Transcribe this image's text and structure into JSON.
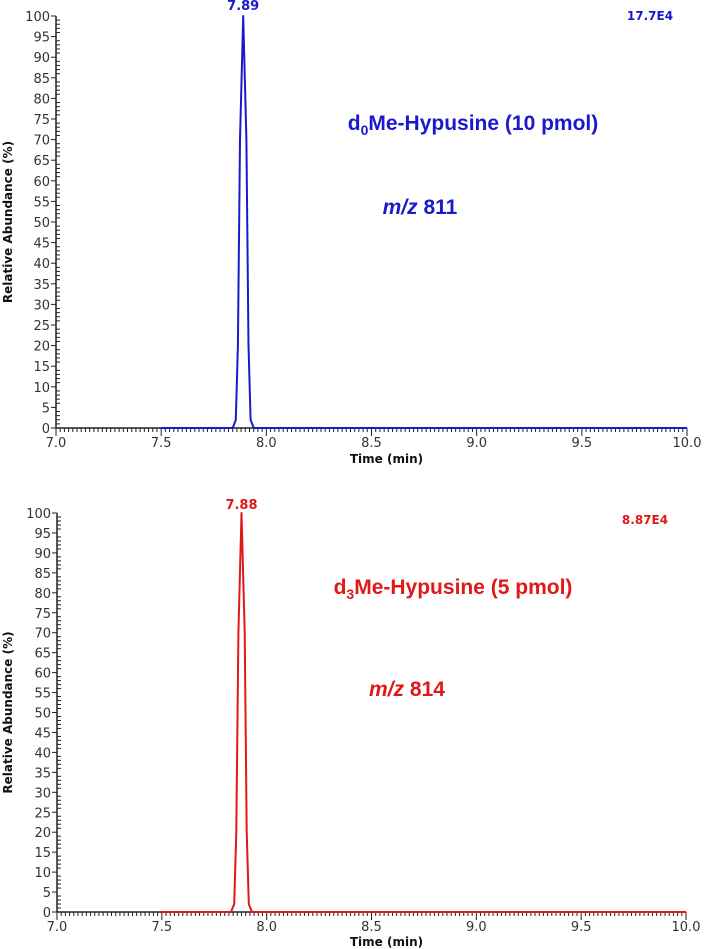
{
  "chart_data": [
    {
      "type": "line",
      "title": "d0Me-Hypusine (10 pmol)",
      "annotation_compound": {
        "prefix": "d",
        "subscript": "0",
        "rest": "Me-Hypusine (10 pmol)"
      },
      "annotation_mz": {
        "italic": "m/z",
        "value": "811"
      },
      "xlabel": "Time (min)",
      "ylabel": "Relative Abundance (%)",
      "xlim": [
        7.0,
        10.0
      ],
      "ylim": [
        0,
        100
      ],
      "xticks": [
        "7.0",
        "7.5",
        "8.0",
        "8.5",
        "9.0",
        "9.5",
        "10.0"
      ],
      "yticks": [
        "0",
        "5",
        "10",
        "15",
        "20",
        "25",
        "30",
        "35",
        "40",
        "45",
        "50",
        "55",
        "60",
        "65",
        "70",
        "75",
        "80",
        "85",
        "90",
        "95",
        "100"
      ],
      "peak_label": "7.89",
      "scale_label": "17.7E4",
      "color": "#1a1acc",
      "trace_start": 7.5,
      "x": [
        7.5,
        7.84,
        7.855,
        7.865,
        7.875,
        7.89,
        7.905,
        7.915,
        7.925,
        7.94,
        10.0
      ],
      "y": [
        0,
        0,
        2,
        20,
        70,
        100,
        70,
        20,
        2,
        0,
        0
      ]
    },
    {
      "type": "line",
      "title": "d3Me-Hypusine (5 pmol)",
      "annotation_compound": {
        "prefix": "d",
        "subscript": "3",
        "rest": "Me-Hypusine (5 pmol)"
      },
      "annotation_mz": {
        "italic": "m/z",
        "value": "814"
      },
      "xlabel": "Time (min)",
      "ylabel": "Relative Abundance (%)",
      "xlim": [
        7.0,
        10.0
      ],
      "ylim": [
        0,
        100
      ],
      "xticks": [
        "7.0",
        "7.5",
        "8.0",
        "8.5",
        "9.0",
        "9.5",
        "10.0"
      ],
      "yticks": [
        "0",
        "5",
        "10",
        "15",
        "20",
        "25",
        "30",
        "35",
        "40",
        "45",
        "50",
        "55",
        "60",
        "65",
        "70",
        "75",
        "80",
        "85",
        "90",
        "95",
        "100"
      ],
      "peak_label": "7.88",
      "scale_label": "8.87E4",
      "color": "#e01818",
      "trace_start": 7.5,
      "x": [
        7.5,
        7.83,
        7.845,
        7.855,
        7.865,
        7.88,
        7.895,
        7.905,
        7.915,
        7.93,
        10.0
      ],
      "y": [
        0,
        0,
        2,
        20,
        70,
        100,
        70,
        20,
        2,
        0,
        0
      ]
    }
  ]
}
